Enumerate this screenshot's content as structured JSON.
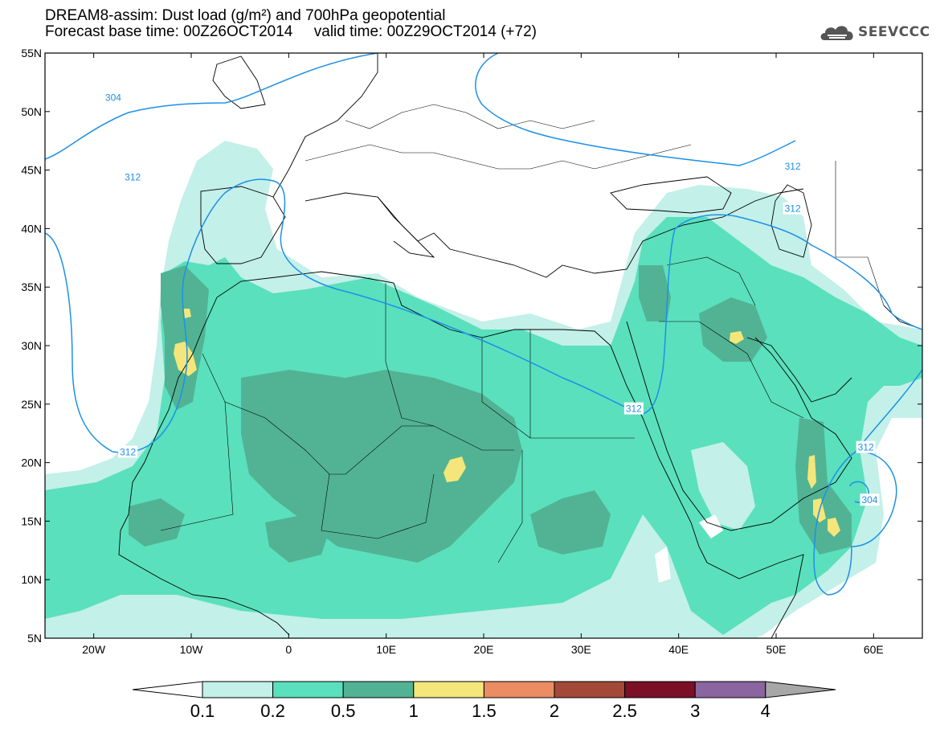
{
  "title": {
    "line1": "DREAM8-assim: Dust load (g/m²) and 700hPa geopotential",
    "line2": "Forecast base time: 00Z26OCT2014     valid time: 00Z29OCT2014 (+72)"
  },
  "logo": {
    "text": "SEEVCCC",
    "icon": "cloud-logo-icon"
  },
  "axes": {
    "lon_min": -25,
    "lon_max": 65,
    "lat_min": 5,
    "lat_max": 55,
    "lon_ticks": [
      {
        "value": -20,
        "label": "20W"
      },
      {
        "value": -10,
        "label": "10W"
      },
      {
        "value": 0,
        "label": "0"
      },
      {
        "value": 10,
        "label": "10E"
      },
      {
        "value": 20,
        "label": "20E"
      },
      {
        "value": 30,
        "label": "30E"
      },
      {
        "value": 40,
        "label": "40E"
      },
      {
        "value": 50,
        "label": "50E"
      },
      {
        "value": 60,
        "label": "60E"
      }
    ],
    "lat_ticks": [
      {
        "value": 55,
        "label": "55N"
      },
      {
        "value": 50,
        "label": "50N"
      },
      {
        "value": 45,
        "label": "45N"
      },
      {
        "value": 40,
        "label": "40N"
      },
      {
        "value": 35,
        "label": "35N"
      },
      {
        "value": 30,
        "label": "30N"
      },
      {
        "value": 25,
        "label": "25N"
      },
      {
        "value": 20,
        "label": "20N"
      },
      {
        "value": 15,
        "label": "15N"
      },
      {
        "value": 10,
        "label": "10N"
      },
      {
        "value": 5,
        "label": "5N"
      }
    ]
  },
  "contour_labels": [
    {
      "text": "304",
      "lon": -18,
      "lat": 51.2
    },
    {
      "text": "312",
      "lon": -16,
      "lat": 44.4
    },
    {
      "text": "312",
      "lon": -16.5,
      "lat": 20.9
    },
    {
      "text": "312",
      "lon": 51.7,
      "lat": 45.3
    },
    {
      "text": "312",
      "lon": 51.7,
      "lat": 41.7
    },
    {
      "text": "312",
      "lon": 35.4,
      "lat": 24.6
    },
    {
      "text": "312",
      "lon": 59.2,
      "lat": 21.3
    },
    {
      "text": "304",
      "lon": 59.6,
      "lat": 16.8
    }
  ],
  "colorbar": {
    "bounds": [
      "0.1",
      "0.2",
      "0.5",
      "1",
      "1.5",
      "2",
      "2.5",
      "3",
      "4"
    ],
    "colors": [
      "#ffffff",
      "#c3f0e9",
      "#5ae0bd",
      "#52b394",
      "#f4e67a",
      "#eb8c62",
      "#a44938",
      "#7a0f26",
      "#8b659f",
      "#a7a7a7"
    ]
  }
}
